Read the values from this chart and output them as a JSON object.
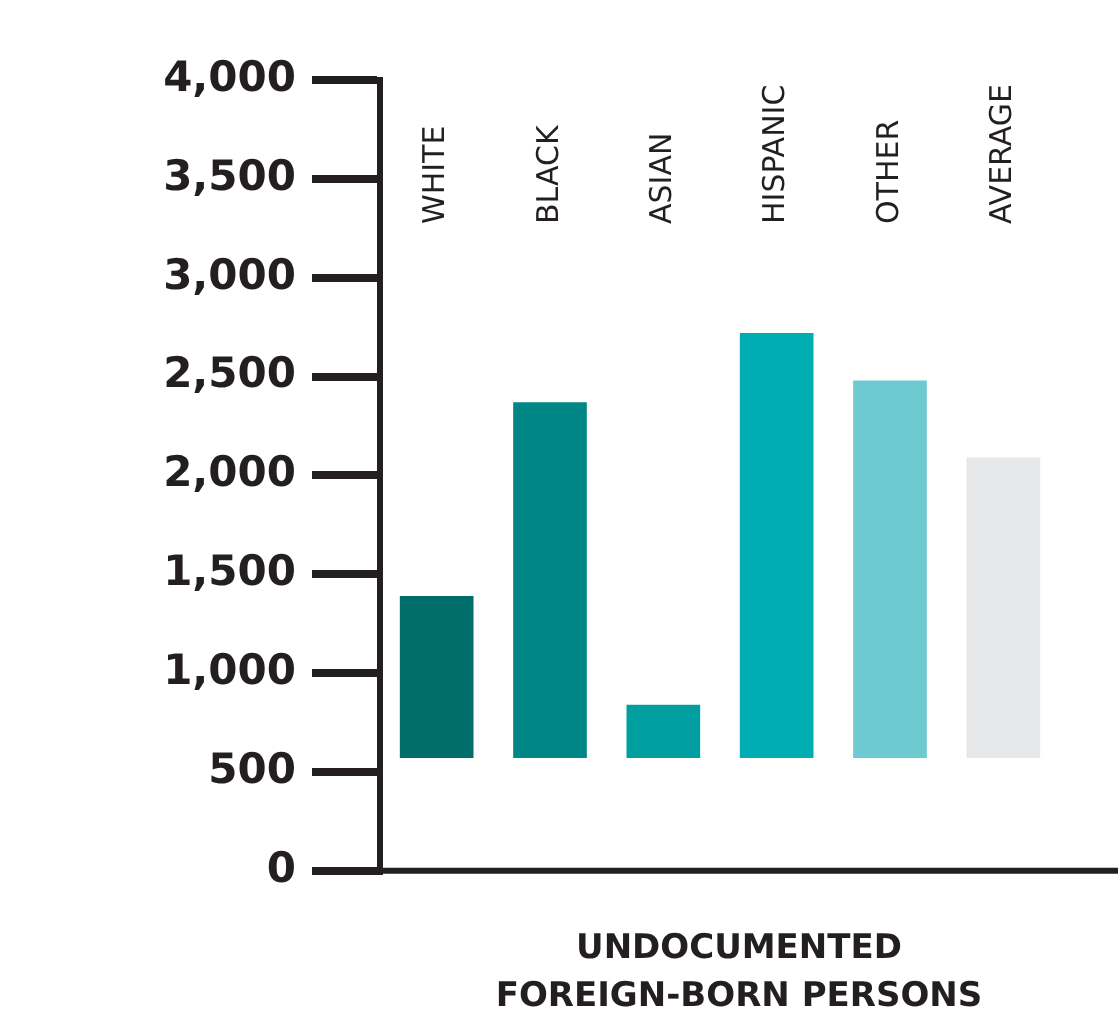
{
  "chart_data": {
    "type": "bar",
    "xlabel": "UNDOCUMENTED\nFOREIGN-BORN PERSONS",
    "categories": [
      "WHITE",
      "BLACK",
      "ASIAN",
      "HISPANIC",
      "OTHER",
      "AVERAGE"
    ],
    "base": [
      570,
      570,
      570,
      570,
      570,
      570
    ],
    "values": [
      820,
      1800,
      270,
      2150,
      1910,
      1520
    ],
    "colors": [
      "#016e6b",
      "#008785",
      "#009e9e",
      "#00adb2",
      "#6ccad0",
      "#e6e7e8"
    ],
    "ylim": [
      0,
      4000
    ],
    "yticks": [
      {
        "value": 0,
        "label": "0"
      },
      {
        "value": 500,
        "label": "500"
      },
      {
        "value": 1000,
        "label": "1,000"
      },
      {
        "value": 1500,
        "label": "1,500"
      },
      {
        "value": 2000,
        "label": "2,000"
      },
      {
        "value": 2500,
        "label": "2,500"
      },
      {
        "value": 3000,
        "label": "3,000"
      },
      {
        "value": 3500,
        "label": "3,500"
      },
      {
        "value": 4000,
        "label": "4,000"
      }
    ],
    "grid": false,
    "legend": false
  }
}
